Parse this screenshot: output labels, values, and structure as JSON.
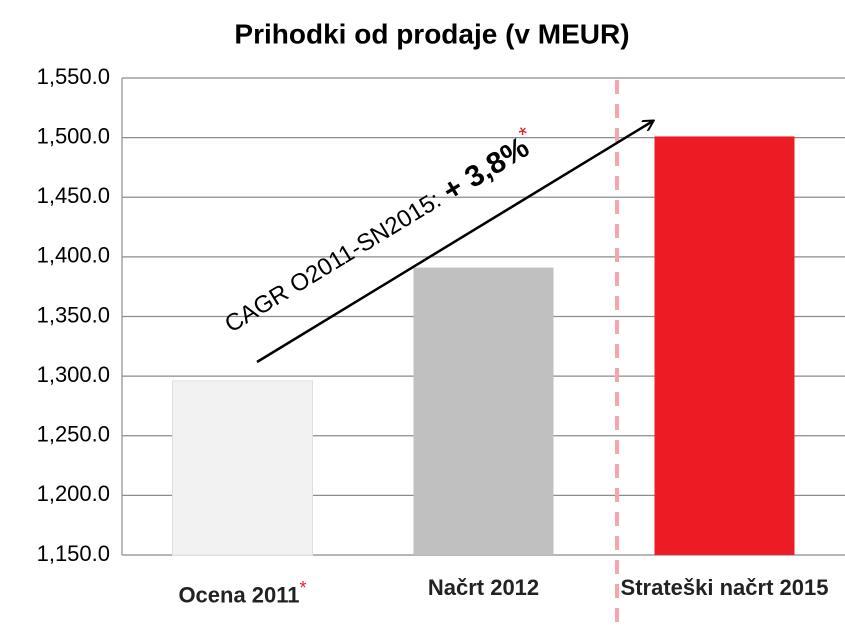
{
  "chart_data": {
    "type": "bar",
    "title": "Prihodki od prodaje (v MEUR)",
    "categories": [
      "Ocena 2011",
      "Načrt 2012",
      "Strateški načrt 2015"
    ],
    "values": [
      1296,
      1391,
      1501
    ],
    "colors": [
      "#f2f2f2",
      "#c0c0c0",
      "#ed1c24"
    ],
    "ylim": [
      1150,
      1550
    ],
    "yticks": [
      {
        "value": 1150,
        "label": "1,150.0"
      },
      {
        "value": 1200,
        "label": "1,200.0"
      },
      {
        "value": 1250,
        "label": "1,250.0"
      },
      {
        "value": 1300,
        "label": "1,300.0"
      },
      {
        "value": 1350,
        "label": "1,350.0"
      },
      {
        "value": 1400,
        "label": "1,400.0"
      },
      {
        "value": 1450,
        "label": "1,450.0"
      },
      {
        "value": 1500,
        "label": "1,500.0"
      },
      {
        "value": 1550,
        "label": "1,550.0"
      }
    ],
    "grid": true,
    "annotation": {
      "text": "CAGR O2011-SN2015:",
      "value_text": "+ 3,8%"
    },
    "footnote_marker": "*"
  }
}
